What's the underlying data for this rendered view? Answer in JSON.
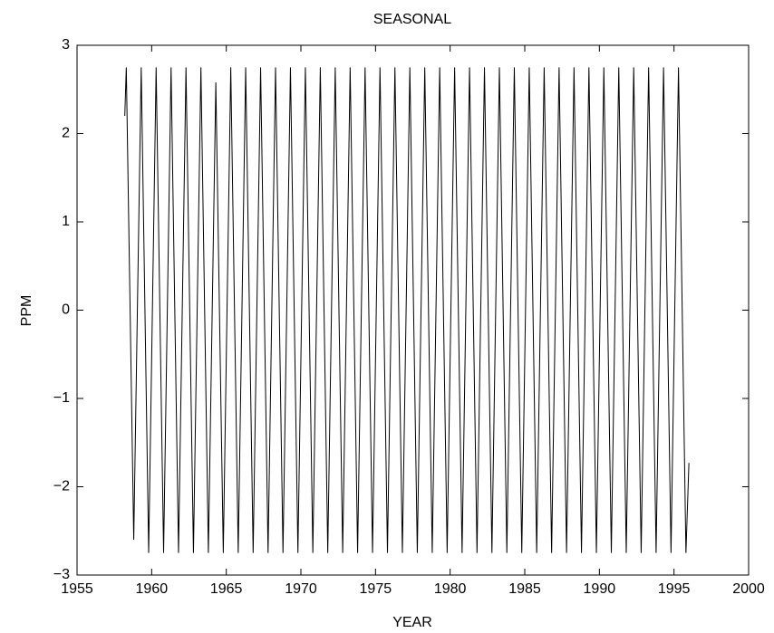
{
  "chart_data": {
    "type": "line",
    "title": "SEASONAL",
    "x_label": "YEAR",
    "y_label": "PPM",
    "color": "#000000",
    "x": [
      1958.2,
      1958.3,
      1958.8,
      1959.3,
      1959.8,
      1960.3,
      1960.8,
      1961.3,
      1961.8,
      1962.3,
      1962.8,
      1963.3,
      1963.8,
      1964.3,
      1964.8,
      1965.3,
      1965.8,
      1966.3,
      1966.8,
      1967.3,
      1967.8,
      1968.3,
      1968.8,
      1969.3,
      1969.8,
      1970.3,
      1970.8,
      1971.3,
      1971.8,
      1972.3,
      1972.8,
      1973.3,
      1973.8,
      1974.3,
      1974.8,
      1975.3,
      1975.8,
      1976.3,
      1976.8,
      1977.3,
      1977.8,
      1978.3,
      1978.8,
      1979.3,
      1979.8,
      1980.3,
      1980.8,
      1981.3,
      1981.8,
      1982.3,
      1982.8,
      1983.3,
      1983.8,
      1984.3,
      1984.8,
      1985.3,
      1985.8,
      1986.3,
      1986.8,
      1987.3,
      1987.8,
      1988.3,
      1988.8,
      1989.3,
      1989.8,
      1990.3,
      1990.8,
      1991.3,
      1991.8,
      1992.3,
      1992.8,
      1993.3,
      1993.8,
      1994.3,
      1994.8,
      1995.3,
      1995.8,
      1996.0
    ],
    "values": [
      2.2,
      2.75,
      -2.6,
      2.75,
      -2.75,
      2.75,
      -2.75,
      2.75,
      -2.75,
      2.75,
      -2.75,
      2.75,
      -2.75,
      2.58,
      -2.75,
      2.75,
      -2.75,
      2.75,
      -2.75,
      2.75,
      -2.75,
      2.75,
      -2.75,
      2.75,
      -2.75,
      2.75,
      -2.75,
      2.75,
      -2.75,
      2.75,
      -2.75,
      2.75,
      -2.75,
      2.75,
      -2.75,
      2.75,
      -2.75,
      2.75,
      -2.75,
      2.75,
      -2.75,
      2.75,
      -2.75,
      2.75,
      -2.75,
      2.75,
      -2.75,
      2.75,
      -2.75,
      2.75,
      -2.75,
      2.75,
      -2.75,
      2.75,
      -2.75,
      2.75,
      -2.75,
      2.75,
      -2.75,
      2.75,
      -2.75,
      2.75,
      -2.75,
      2.75,
      -2.75,
      2.75,
      -2.75,
      2.75,
      -2.75,
      2.75,
      -2.75,
      2.75,
      -2.75,
      2.75,
      -2.75,
      2.75,
      -2.75,
      -1.73
    ],
    "xlim": [
      1955,
      2000
    ],
    "xticks": [
      1955,
      1960,
      1965,
      1970,
      1975,
      1980,
      1985,
      1990,
      1995,
      2000
    ],
    "ylim": [
      -3,
      3
    ],
    "yticks": [
      {
        "value": -3,
        "label": "−3"
      },
      {
        "value": -2,
        "label": "−2"
      },
      {
        "value": -1,
        "label": "−1"
      },
      0,
      1,
      2,
      3
    ]
  }
}
